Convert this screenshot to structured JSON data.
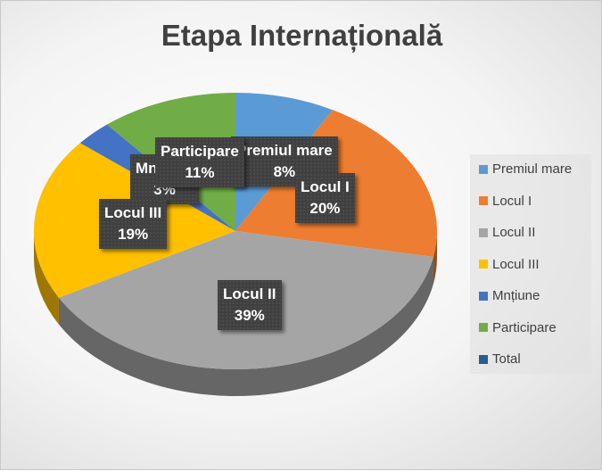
{
  "chart_data": {
    "type": "pie",
    "title": "Etapa Internațională",
    "legend_position": "right",
    "slices": [
      {
        "label": "Premiul mare",
        "value": 8,
        "value_label": "8%",
        "color": "#5b9bd5"
      },
      {
        "label": "Locul I",
        "value": 20,
        "value_label": "20%",
        "color": "#ed7d31"
      },
      {
        "label": "Locul II",
        "value": 39,
        "value_label": "39%",
        "color": "#a5a5a5"
      },
      {
        "label": "Locul III",
        "value": 19,
        "value_label": "19%",
        "color": "#ffc000"
      },
      {
        "label": "Mnțiune",
        "value": 3,
        "value_label": "3%",
        "color": "#4472c4"
      },
      {
        "label": "Participare",
        "value": 11,
        "value_label": "11%",
        "color": "#70ad47"
      }
    ],
    "legend": [
      {
        "label": "Premiul mare",
        "color": "#5b9bd5"
      },
      {
        "label": "Locul I",
        "color": "#ed7d31"
      },
      {
        "label": "Locul II",
        "color": "#a5a5a5"
      },
      {
        "label": "Locul III",
        "color": "#ffc000"
      },
      {
        "label": "Mnțiune",
        "color": "#4472c4"
      },
      {
        "label": "Participare",
        "color": "#70ad47"
      },
      {
        "label": "Total",
        "color": "#255e91"
      }
    ]
  }
}
